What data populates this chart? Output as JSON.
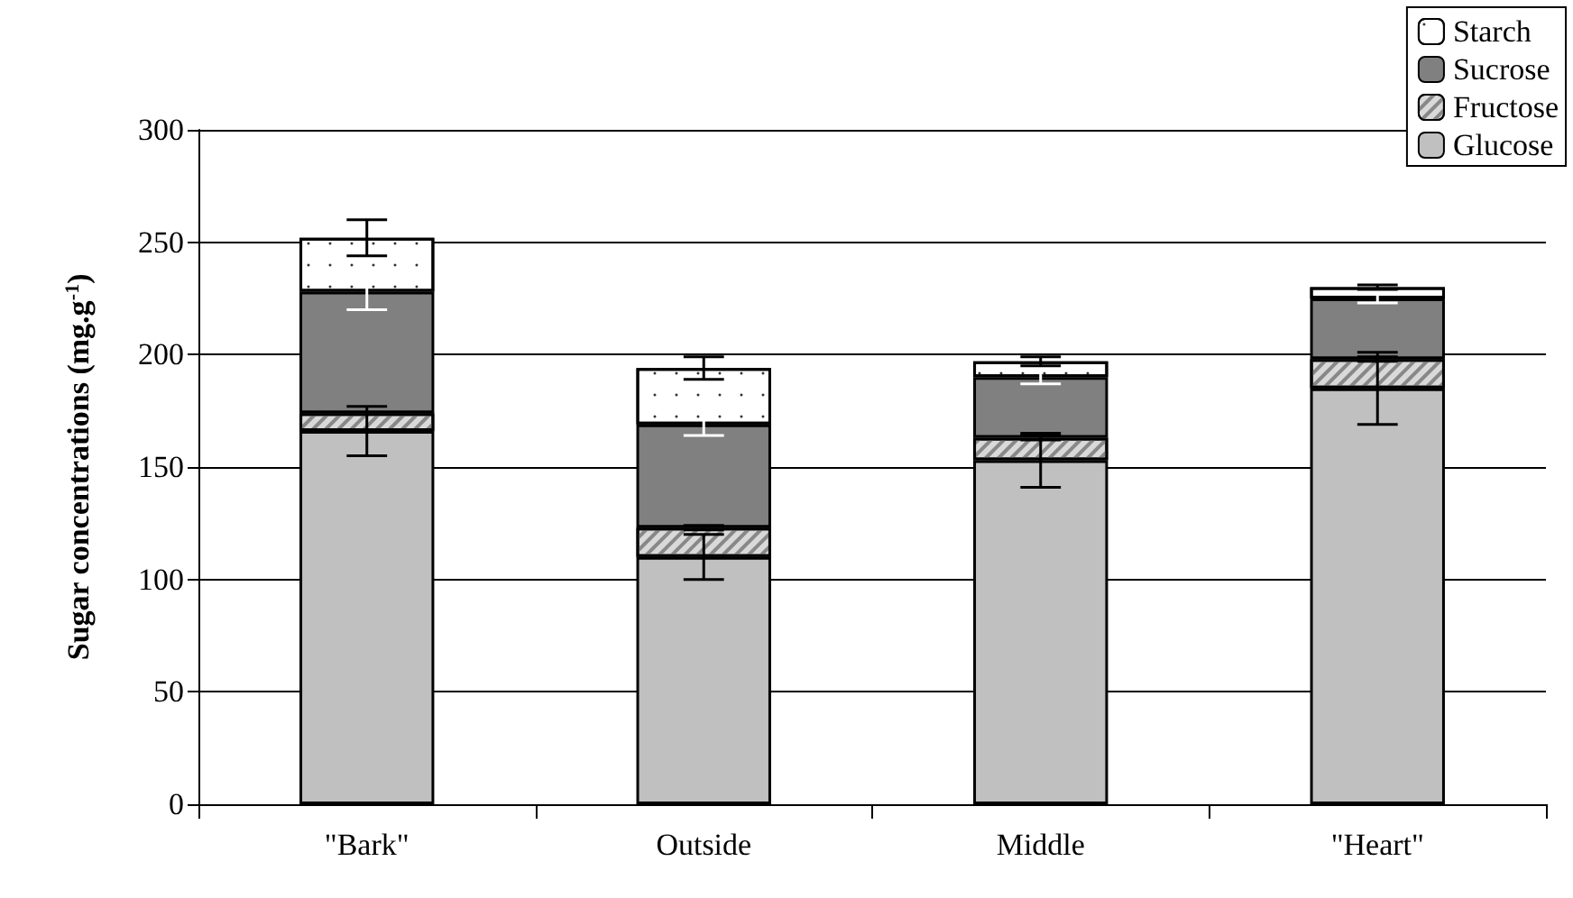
{
  "chart_data": {
    "type": "bar",
    "stacked": true,
    "ylabel": "Sugar concentrations (mg.g$^{-1}$)",
    "categories": [
      "\"Bark\"",
      "Outside",
      "Middle",
      "\"Heart\""
    ],
    "series": [
      {
        "name": "Glucose",
        "color": "#c0c0c0",
        "values": [
          166,
          110,
          153,
          185
        ],
        "errors": [
          11,
          10,
          12,
          16
        ]
      },
      {
        "name": "Fructose",
        "color": "#d9d9d9",
        "values": [
          8,
          13,
          10,
          13
        ],
        "errors": [
          null,
          1,
          1,
          1
        ]
      },
      {
        "name": "Sucrose",
        "color": "#808080",
        "values": [
          54,
          46,
          27,
          27
        ],
        "errors": [
          8,
          5,
          3,
          2
        ]
      },
      {
        "name": "Starch",
        "color": "#ffffff",
        "values": [
          24,
          25,
          7,
          5
        ],
        "errors": [
          8,
          5,
          2,
          1
        ]
      }
    ],
    "ylim": [
      0,
      300
    ],
    "yticks": [
      0,
      50,
      100,
      150,
      200,
      250,
      300
    ],
    "grid": "y",
    "legend": "top right"
  }
}
